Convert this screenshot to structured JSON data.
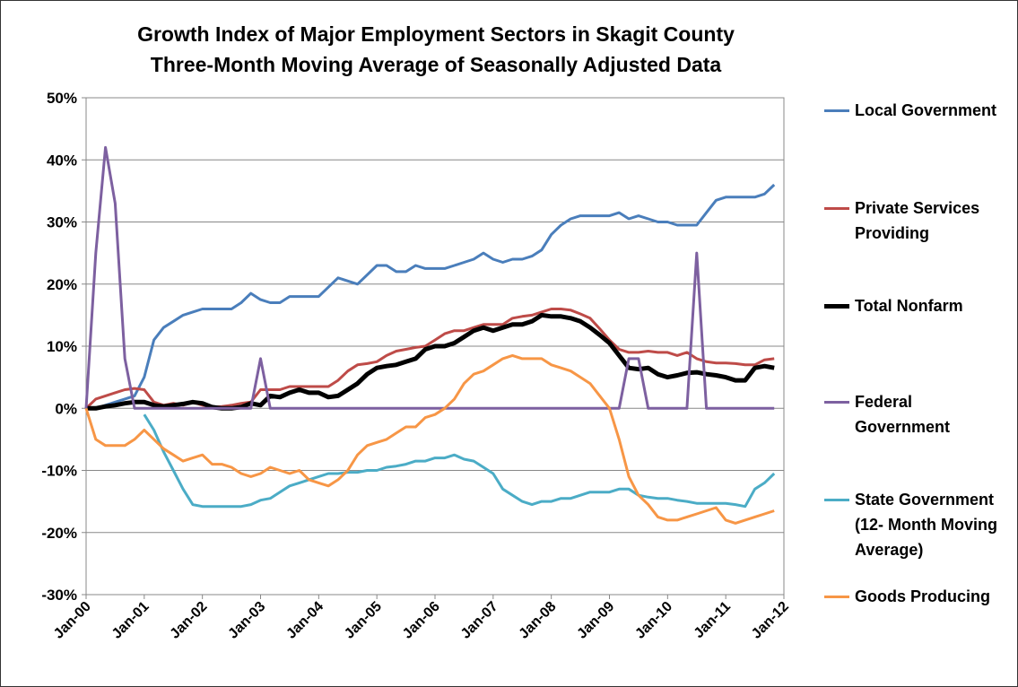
{
  "chart_data": {
    "type": "line",
    "title": "Growth Index of Major Employment Sectors in Skagit County",
    "subtitle": "Three-Month Moving Average of Seasonally Adjusted Data",
    "x": [
      "2000-01",
      "2000-03",
      "2000-05",
      "2000-07",
      "2000-09",
      "2000-11",
      "2001-01",
      "2001-03",
      "2001-05",
      "2001-07",
      "2001-09",
      "2001-11",
      "2002-01",
      "2002-03",
      "2002-05",
      "2002-07",
      "2002-09",
      "2002-11",
      "2003-01",
      "2003-03",
      "2003-05",
      "2003-07",
      "2003-09",
      "2003-11",
      "2004-01",
      "2004-03",
      "2004-05",
      "2004-07",
      "2004-09",
      "2004-11",
      "2005-01",
      "2005-03",
      "2005-05",
      "2005-07",
      "2005-09",
      "2005-11",
      "2006-01",
      "2006-03",
      "2006-05",
      "2006-07",
      "2006-09",
      "2006-11",
      "2007-01",
      "2007-03",
      "2007-05",
      "2007-07",
      "2007-09",
      "2007-11",
      "2008-01",
      "2008-03",
      "2008-05",
      "2008-07",
      "2008-09",
      "2008-11",
      "2009-01",
      "2009-03",
      "2009-05",
      "2009-07",
      "2009-09",
      "2009-11",
      "2010-01",
      "2010-03",
      "2010-05",
      "2010-07",
      "2010-09",
      "2010-11",
      "2011-01",
      "2011-03",
      "2011-05",
      "2011-07",
      "2011-09",
      "2011-11"
    ],
    "series": [
      {
        "name": "Local Government",
        "color": "#4a7ebb",
        "width": 3,
        "values": [
          0,
          0,
          0.5,
          1,
          1.5,
          2,
          5,
          11,
          13,
          14,
          15,
          15.5,
          16,
          16,
          16,
          16,
          17,
          18.5,
          17.5,
          17,
          17,
          18,
          18,
          18,
          18,
          19.5,
          21,
          20.5,
          20,
          21.5,
          23,
          23,
          22,
          22,
          23,
          22.5,
          22.5,
          22.5,
          23,
          23.5,
          24,
          25,
          24,
          23.5,
          24,
          24,
          24.5,
          25.5,
          28,
          29.5,
          30.5,
          31,
          31,
          31,
          31,
          31.5,
          30.5,
          31,
          30.5,
          30,
          30,
          29.5,
          29.5,
          29.5,
          31.5,
          33.5,
          34,
          34,
          34,
          34,
          34.5,
          36
        ]
      },
      {
        "name": "Private Services Providing",
        "color": "#be4b48",
        "width": 3,
        "values": [
          0,
          1.5,
          2,
          2.5,
          3,
          3.2,
          3,
          1,
          0.5,
          0.8,
          0.5,
          1,
          0.5,
          0.2,
          0.3,
          0.5,
          0.8,
          1,
          3,
          3,
          3,
          3.5,
          3.5,
          3.5,
          3.5,
          3.5,
          4.5,
          6,
          7,
          7.2,
          7.5,
          8.5,
          9.2,
          9.5,
          9.8,
          10,
          11,
          12,
          12.5,
          12.5,
          13,
          13.5,
          13.5,
          13.5,
          14.5,
          14.8,
          15,
          15.5,
          16,
          16,
          15.8,
          15.2,
          14.5,
          12.8,
          11,
          9.5,
          9,
          9,
          9.2,
          9,
          9,
          8.5,
          9,
          8,
          7.5,
          7.3,
          7.3,
          7.2,
          7,
          7,
          7.8,
          8
        ]
      },
      {
        "name": "Total Nonfarm",
        "color": "#000000",
        "width": 5,
        "values": [
          0,
          0,
          0.3,
          0.5,
          0.8,
          1,
          1,
          0.5,
          0.3,
          0.5,
          0.7,
          1,
          0.8,
          0.2,
          0,
          0,
          0.2,
          0.8,
          0.5,
          2,
          1.8,
          2.5,
          3,
          2.5,
          2.5,
          1.8,
          2,
          3,
          4,
          5.5,
          6.5,
          6.8,
          7,
          7.5,
          8,
          9.5,
          10,
          10,
          10.5,
          11.5,
          12.5,
          13,
          12.5,
          13,
          13.5,
          13.5,
          14,
          15,
          14.8,
          14.8,
          14.5,
          14,
          13,
          11.8,
          10.5,
          8.5,
          6.5,
          6.3,
          6.5,
          5.5,
          5,
          5.3,
          5.7,
          5.8,
          5.5,
          5.3,
          5,
          4.5,
          4.5,
          6.5,
          6.8,
          6.5
        ]
      },
      {
        "name": "Federal Government",
        "color": "#7d60a0",
        "width": 3,
        "values": [
          0,
          25,
          42,
          33,
          8,
          0,
          0,
          0,
          0,
          0,
          0,
          0,
          0,
          0,
          0,
          0,
          0,
          0,
          8,
          0,
          0,
          0,
          0,
          0,
          0,
          0,
          0,
          0,
          0,
          0,
          0,
          0,
          0,
          0,
          0,
          0,
          0,
          0,
          0,
          0,
          0,
          0,
          0,
          0,
          0,
          0,
          0,
          0,
          0,
          0,
          0,
          0,
          0,
          0,
          0,
          0,
          8,
          8,
          0,
          0,
          0,
          0,
          0,
          25,
          0,
          0,
          0,
          0,
          0,
          0,
          0,
          0
        ]
      },
      {
        "name": "State Government (12- Month Moving Average)",
        "color": "#4bacc6",
        "width": 3,
        "values": [
          null,
          null,
          null,
          null,
          null,
          null,
          -1,
          -3.5,
          -7,
          -10,
          -13,
          -15.5,
          -15.8,
          -15.8,
          -15.8,
          -15.8,
          -15.8,
          -15.5,
          -14.8,
          -14.5,
          -13.5,
          -12.5,
          -12,
          -11.5,
          -11,
          -10.5,
          -10.5,
          -10.3,
          -10.3,
          -10,
          -10,
          -9.5,
          -9.3,
          -9,
          -8.5,
          -8.5,
          -8,
          -8,
          -7.5,
          -8.2,
          -8.5,
          -9.5,
          -10.5,
          -13,
          -14,
          -15,
          -15.5,
          -15,
          -15,
          -14.5,
          -14.5,
          -14,
          -13.5,
          -13.5,
          -13.5,
          -13,
          -13,
          -14,
          -14.3,
          -14.5,
          -14.5,
          -14.8,
          -15,
          -15.3,
          -15.3,
          -15.3,
          -15.3,
          -15.5,
          -15.8,
          -13,
          -12,
          -10.5
        ]
      },
      {
        "name": "Goods Producing",
        "color": "#f79646",
        "width": 3,
        "values": [
          0,
          -5,
          -6,
          -6,
          -6,
          -5,
          -3.5,
          -5,
          -6.5,
          -7.5,
          -8.5,
          -8,
          -7.5,
          -9,
          -9,
          -9.5,
          -10.5,
          -11,
          -10.5,
          -9.5,
          -10,
          -10.5,
          -10,
          -11.5,
          -12,
          -12.5,
          -11.5,
          -10,
          -7.5,
          -6,
          -5.5,
          -5,
          -4,
          -3,
          -3,
          -1.5,
          -1,
          0,
          1.5,
          4,
          5.5,
          6,
          7,
          8,
          8.5,
          8,
          8,
          8,
          7,
          6.5,
          6,
          5,
          4,
          2,
          0,
          -5,
          -11,
          -14,
          -15.5,
          -17.5,
          -18,
          -18,
          -17.5,
          -17,
          -16.5,
          -16,
          -18,
          -18.5,
          -18,
          -17.5,
          -17,
          -16.5
        ]
      }
    ],
    "xlim": [
      "2000-01",
      "2012-01"
    ],
    "xticks": [
      {
        "value": "2000-01",
        "label": "Jan-00"
      },
      {
        "value": "2001-01",
        "label": "Jan-01"
      },
      {
        "value": "2002-01",
        "label": "Jan-02"
      },
      {
        "value": "2003-01",
        "label": "Jan-03"
      },
      {
        "value": "2004-01",
        "label": "Jan-04"
      },
      {
        "value": "2005-01",
        "label": "Jan-05"
      },
      {
        "value": "2006-01",
        "label": "Jan-06"
      },
      {
        "value": "2007-01",
        "label": "Jan-07"
      },
      {
        "value": "2008-01",
        "label": "Jan-08"
      },
      {
        "value": "2009-01",
        "label": "Jan-09"
      },
      {
        "value": "2010-01",
        "label": "Jan-10"
      },
      {
        "value": "2011-01",
        "label": "Jan-11"
      },
      {
        "value": "2012-01",
        "label": "Jan-12"
      }
    ],
    "ylim": [
      -30,
      50
    ],
    "yticks": [
      {
        "value": -30,
        "label": "-30%"
      },
      {
        "value": -20,
        "label": "-20%"
      },
      {
        "value": -10,
        "label": "-10%"
      },
      {
        "value": 0,
        "label": "0%"
      },
      {
        "value": 10,
        "label": "10%"
      },
      {
        "value": 20,
        "label": "20%"
      },
      {
        "value": 30,
        "label": "30%"
      },
      {
        "value": 40,
        "label": "40%"
      },
      {
        "value": 50,
        "label": "50%"
      }
    ],
    "grid": true,
    "legend": "right"
  }
}
